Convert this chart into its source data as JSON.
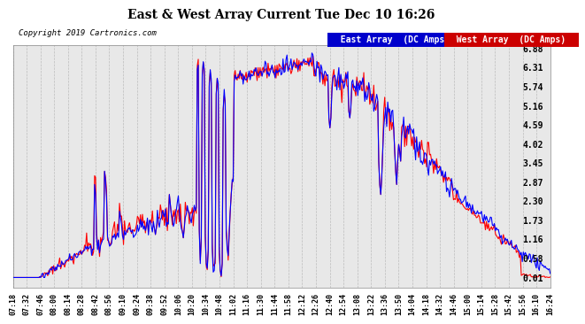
{
  "title": "East & West Array Current Tue Dec 10 16:26",
  "copyright": "Copyright 2019 Cartronics.com",
  "legend_east": "East Array  (DC Amps)",
  "legend_west": "West Array  (DC Amps)",
  "east_color": "#0000ff",
  "west_color": "#ff0000",
  "east_legend_bg": "#0000cc",
  "west_legend_bg": "#cc0000",
  "background_color": "#ffffff",
  "plot_bg_color": "#e8e8e8",
  "grid_color": "#aaaaaa",
  "yticks": [
    0.01,
    0.58,
    1.16,
    1.73,
    2.3,
    2.87,
    3.45,
    4.02,
    4.59,
    5.16,
    5.74,
    6.31,
    6.88
  ],
  "ymin": 0.01,
  "ymax": 6.88,
  "xtick_labels": [
    "07:18",
    "07:32",
    "07:46",
    "08:00",
    "08:14",
    "08:28",
    "08:42",
    "08:56",
    "09:10",
    "09:24",
    "09:38",
    "09:52",
    "10:06",
    "10:20",
    "10:34",
    "10:48",
    "11:02",
    "11:16",
    "11:30",
    "11:44",
    "11:58",
    "12:12",
    "12:26",
    "12:40",
    "12:54",
    "13:08",
    "13:22",
    "13:36",
    "13:50",
    "14:04",
    "14:18",
    "14:32",
    "14:46",
    "15:00",
    "15:14",
    "15:28",
    "15:42",
    "15:56",
    "16:10",
    "16:24"
  ]
}
